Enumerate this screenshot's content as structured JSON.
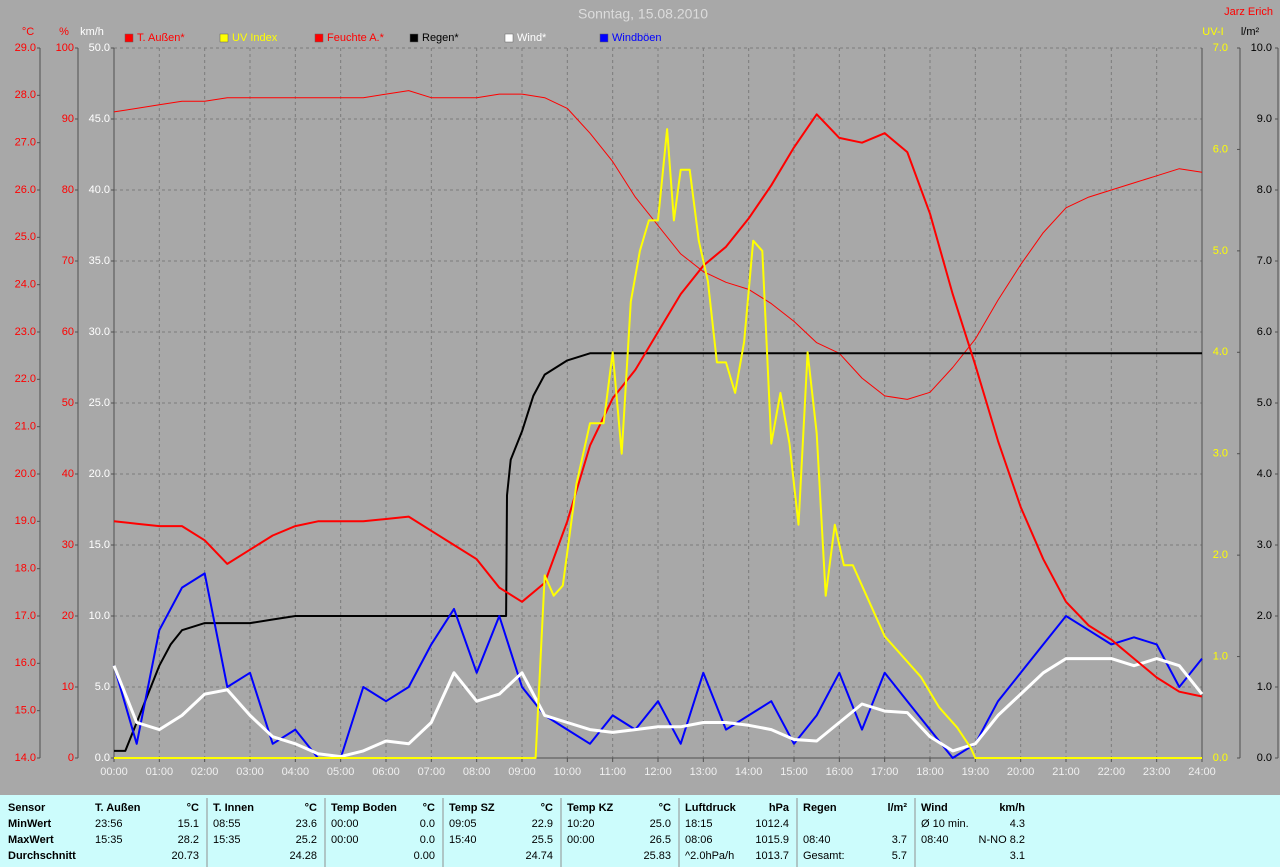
{
  "title": "Sonntag, 15.08.2010",
  "author": "Jarz Erich",
  "chart_data": {
    "type": "line",
    "grid": true,
    "xlim": [
      0,
      24
    ],
    "xticks": [
      {
        "value": 0,
        "label": "00:00"
      },
      {
        "value": 1,
        "label": "01:00"
      },
      {
        "value": 2,
        "label": "02:00"
      },
      {
        "value": 3,
        "label": "03:00"
      },
      {
        "value": 4,
        "label": "04:00"
      },
      {
        "value": 5,
        "label": "05:00"
      },
      {
        "value": 6,
        "label": "06:00"
      },
      {
        "value": 7,
        "label": "07:00"
      },
      {
        "value": 8,
        "label": "08:00"
      },
      {
        "value": 9,
        "label": "09:00"
      },
      {
        "value": 10,
        "label": "10:00"
      },
      {
        "value": 11,
        "label": "11:00"
      },
      {
        "value": 12,
        "label": "12:00"
      },
      {
        "value": 13,
        "label": "13:00"
      },
      {
        "value": 14,
        "label": "14:00"
      },
      {
        "value": 15,
        "label": "15:00"
      },
      {
        "value": 16,
        "label": "16:00"
      },
      {
        "value": 17,
        "label": "17:00"
      },
      {
        "value": 18,
        "label": "18:00"
      },
      {
        "value": 19,
        "label": "19:00"
      },
      {
        "value": 20,
        "label": "20:00"
      },
      {
        "value": 21,
        "label": "21:00"
      },
      {
        "value": 22,
        "label": "22:00"
      },
      {
        "value": 23,
        "label": "23:00"
      },
      {
        "value": 24,
        "label": "24:00"
      }
    ],
    "axes": [
      {
        "label": "°C",
        "color": "#ff0000",
        "side": "left",
        "lim": [
          14,
          29
        ],
        "ticks": [
          {
            "value": 14,
            "label": "14.0"
          },
          {
            "value": 15,
            "label": "15.0"
          },
          {
            "value": 16,
            "label": "16.0"
          },
          {
            "value": 17,
            "label": "17.0"
          },
          {
            "value": 18,
            "label": "18.0"
          },
          {
            "value": 19,
            "label": "19.0"
          },
          {
            "value": 20,
            "label": "20.0"
          },
          {
            "value": 21,
            "label": "21.0"
          },
          {
            "value": 22,
            "label": "22.0"
          },
          {
            "value": 23,
            "label": "23.0"
          },
          {
            "value": 24,
            "label": "24.0"
          },
          {
            "value": 25,
            "label": "25.0"
          },
          {
            "value": 26,
            "label": "26.0"
          },
          {
            "value": 27,
            "label": "27.0"
          },
          {
            "value": 28,
            "label": "28.0"
          },
          {
            "value": 29,
            "label": "29.0"
          }
        ]
      },
      {
        "label": "%",
        "color": "#ff0000",
        "side": "left",
        "lim": [
          0,
          100
        ],
        "ticks": [
          0,
          10,
          20,
          30,
          40,
          50,
          60,
          70,
          80,
          90,
          100
        ]
      },
      {
        "label": "km/h",
        "color": "#ffffff",
        "side": "left",
        "lim": [
          0,
          50
        ],
        "ticks": [
          {
            "value": 0,
            "label": "0.0"
          },
          {
            "value": 5,
            "label": "5.0"
          },
          {
            "value": 10,
            "label": "10.0"
          },
          {
            "value": 15,
            "label": "15.0"
          },
          {
            "value": 20,
            "label": "20.0"
          },
          {
            "value": 25,
            "label": "25.0"
          },
          {
            "value": 30,
            "label": "30.0"
          },
          {
            "value": 35,
            "label": "35.0"
          },
          {
            "value": 40,
            "label": "40.0"
          },
          {
            "value": 45,
            "label": "45.0"
          },
          {
            "value": 50,
            "label": "50.0"
          }
        ]
      },
      {
        "label": "UV-I",
        "color": "#ffff00",
        "side": "right",
        "lim": [
          0,
          7
        ],
        "ticks": [
          {
            "value": 0,
            "label": "0.0"
          },
          {
            "value": 1,
            "label": "1.0"
          },
          {
            "value": 2,
            "label": "2.0"
          },
          {
            "value": 3,
            "label": "3.0"
          },
          {
            "value": 4,
            "label": "4.0"
          },
          {
            "value": 5,
            "label": "5.0"
          },
          {
            "value": 6,
            "label": "6.0"
          },
          {
            "value": 7,
            "label": "7.0"
          }
        ]
      },
      {
        "label": "l/m²",
        "color": "#000000",
        "side": "right",
        "lim": [
          0,
          10
        ],
        "ticks": [
          {
            "value": 0,
            "label": "0.0"
          },
          {
            "value": 1,
            "label": "1.0"
          },
          {
            "value": 2,
            "label": "2.0"
          },
          {
            "value": 3,
            "label": "3.0"
          },
          {
            "value": 4,
            "label": "4.0"
          },
          {
            "value": 5,
            "label": "5.0"
          },
          {
            "value": 6,
            "label": "6.0"
          },
          {
            "value": 7,
            "label": "7.0"
          },
          {
            "value": 8,
            "label": "8.0"
          },
          {
            "value": 9,
            "label": "9.0"
          },
          {
            "value": 10,
            "label": "10.0"
          }
        ]
      }
    ],
    "x": [
      0,
      0.5,
      1,
      1.5,
      2,
      2.5,
      3,
      3.5,
      4,
      4.5,
      5,
      5.5,
      6,
      6.5,
      7,
      7.5,
      8,
      8.5,
      9,
      9.5,
      10,
      10.5,
      11,
      11.5,
      12,
      12.5,
      13,
      13.5,
      14,
      14.5,
      15,
      15.5,
      16,
      16.5,
      17,
      17.5,
      18,
      18.5,
      19,
      19.5,
      20,
      20.5,
      21,
      21.5,
      22,
      22.5,
      23,
      23.5,
      24
    ],
    "series": [
      {
        "name": "T. Außen*",
        "color": "#ff0000",
        "axis": 0,
        "width": 2,
        "values": [
          19.0,
          18.95,
          18.9,
          18.9,
          18.6,
          18.1,
          18.4,
          18.7,
          18.9,
          19.0,
          19.0,
          19.0,
          19.05,
          19.1,
          18.8,
          18.5,
          18.2,
          17.6,
          17.3,
          17.7,
          19.0,
          20.6,
          21.6,
          22.2,
          23.0,
          23.8,
          24.4,
          24.8,
          25.4,
          26.1,
          26.9,
          27.6,
          27.1,
          27.0,
          27.2,
          26.8,
          25.5,
          23.8,
          22.3,
          20.7,
          19.3,
          18.2,
          17.3,
          16.8,
          16.5,
          16.1,
          15.7,
          15.4,
          15.3
        ]
      },
      {
        "name": "UV Index",
        "color": "#ffff00",
        "axis": 3,
        "width": 2,
        "x": [
          0,
          9.3,
          9.5,
          9.7,
          9.9,
          10.2,
          10.5,
          10.8,
          11.0,
          11.2,
          11.4,
          11.6,
          11.8,
          12.0,
          12.2,
          12.35,
          12.5,
          12.7,
          12.9,
          13.1,
          13.3,
          13.5,
          13.7,
          13.9,
          14.1,
          14.3,
          14.5,
          14.7,
          14.9,
          15.1,
          15.3,
          15.5,
          15.7,
          15.9,
          16.1,
          16.3,
          16.6,
          17.0,
          17.4,
          17.8,
          18.2,
          18.6,
          18.9,
          19.0,
          24
        ],
        "values": [
          0,
          0,
          1.8,
          1.6,
          1.7,
          2.7,
          3.3,
          3.3,
          4.0,
          3.0,
          4.5,
          5.0,
          5.3,
          5.3,
          6.2,
          5.3,
          5.8,
          5.8,
          5.1,
          4.7,
          3.9,
          3.9,
          3.6,
          4.1,
          5.1,
          5.0,
          3.1,
          3.6,
          3.1,
          2.3,
          4.0,
          3.2,
          1.6,
          2.3,
          1.9,
          1.9,
          1.6,
          1.2,
          1.0,
          0.8,
          0.5,
          0.3,
          0.1,
          0,
          0
        ]
      },
      {
        "name": "Feuchte A.*",
        "color": "#ff0000",
        "axis": 1,
        "width": 1,
        "values": [
          91,
          91.5,
          92,
          92.5,
          92.5,
          93,
          93,
          93,
          93,
          93,
          93,
          93,
          93.5,
          94,
          93,
          93,
          93,
          93.5,
          93.5,
          93,
          91.5,
          88,
          84,
          79,
          75,
          71,
          68.5,
          67,
          66,
          64,
          61.5,
          58.5,
          57,
          53.5,
          51,
          50.5,
          51.5,
          55,
          59,
          64.5,
          69.5,
          74,
          77.5,
          79,
          80,
          81,
          82,
          83,
          82.5
        ]
      },
      {
        "name": "Regen*",
        "color": "#000000",
        "axis": 4,
        "width": 2,
        "x": [
          0,
          0.25,
          0.5,
          0.75,
          1,
          1.25,
          1.5,
          2,
          3,
          3.5,
          4,
          8.65,
          8.67,
          8.75,
          9,
          9.25,
          9.5,
          10,
          10.5,
          24
        ],
        "values": [
          0.1,
          0.1,
          0.5,
          0.9,
          1.3,
          1.6,
          1.8,
          1.9,
          1.9,
          1.95,
          2.0,
          2.0,
          3.7,
          4.2,
          4.6,
          5.1,
          5.4,
          5.6,
          5.7,
          5.7
        ]
      },
      {
        "name": "Wind*",
        "color": "#ffffff",
        "axis": 2,
        "width": 3,
        "values": [
          6.5,
          2.5,
          2.0,
          3.0,
          4.5,
          4.8,
          3.0,
          1.5,
          1.0,
          0.3,
          0.1,
          0.5,
          1.2,
          1.0,
          2.5,
          6.0,
          4.0,
          4.5,
          6.0,
          3.0,
          2.5,
          2.0,
          1.8,
          2.0,
          2.2,
          2.2,
          2.5,
          2.5,
          2.3,
          2.0,
          1.3,
          1.2,
          2.5,
          3.8,
          3.3,
          3.2,
          1.5,
          0.5,
          1.0,
          3.0,
          4.5,
          6.0,
          7.0,
          7.0,
          7.0,
          6.5,
          7.0,
          6.5,
          4.5
        ]
      },
      {
        "name": "Windböen",
        "color": "#0000ff",
        "axis": 2,
        "width": 2,
        "values": [
          6.5,
          1,
          9,
          12,
          13,
          5,
          6,
          1,
          2,
          0,
          0,
          5,
          4,
          5,
          8,
          10.5,
          6,
          10,
          5,
          3,
          2,
          1,
          3,
          2,
          4,
          1,
          6,
          2,
          3,
          4,
          1,
          3,
          6,
          2,
          6,
          4,
          2,
          0,
          1,
          4,
          6,
          8,
          10,
          9,
          8,
          8.5,
          8,
          5,
          7
        ]
      }
    ]
  },
  "stats": {
    "header": "Sensor",
    "row_labels": [
      "MinWert",
      "MaxWert",
      "Durchschnitt"
    ],
    "groups": [
      {
        "name": "T. Außen",
        "unit": "°C",
        "rows": [
          {
            "left": "23:56",
            "right": "15.1"
          },
          {
            "left": "15:35",
            "right": "28.2"
          },
          {
            "right": "20.73"
          }
        ]
      },
      {
        "name": "T. Innen",
        "unit": "°C",
        "rows": [
          {
            "left": "08:55",
            "right": "23.6"
          },
          {
            "left": "15:35",
            "right": "25.2"
          },
          {
            "right": "24.28"
          }
        ]
      },
      {
        "name": "Temp Boden",
        "unit": "°C",
        "rows": [
          {
            "left": "00:00",
            "right": "0.0"
          },
          {
            "left": "00:00",
            "right": "0.0"
          },
          {
            "right": "0.00"
          }
        ]
      },
      {
        "name": "Temp SZ",
        "unit": "°C",
        "rows": [
          {
            "left": "09:05",
            "right": "22.9"
          },
          {
            "left": "15:40",
            "right": "25.5"
          },
          {
            "right": "24.74"
          }
        ]
      },
      {
        "name": "Temp KZ",
        "unit": "°C",
        "rows": [
          {
            "left": "10:20",
            "right": "25.0"
          },
          {
            "left": "00:00",
            "right": "26.5"
          },
          {
            "right": "25.83"
          }
        ]
      },
      {
        "name": "Luftdruck",
        "unit": "hPa",
        "rows": [
          {
            "left": "18:15",
            "right": "1012.4"
          },
          {
            "left": "08:06",
            "right": "1015.9"
          },
          {
            "left": "^2.0hPa/h",
            "right": "1013.7"
          }
        ]
      },
      {
        "name": "Regen",
        "unit": "l/m²",
        "rows": [
          {},
          {
            "left": "08:40",
            "right": "3.7"
          },
          {
            "left": "Gesamt:",
            "right": "5.7"
          }
        ]
      },
      {
        "name": "Wind",
        "unit": "km/h",
        "rows": [
          {
            "left": "Ø 10 min.",
            "right": "4.3"
          },
          {
            "left": "08:40",
            "right": "N-NO 8.2"
          },
          {
            "right": "3.1"
          }
        ]
      }
    ]
  }
}
